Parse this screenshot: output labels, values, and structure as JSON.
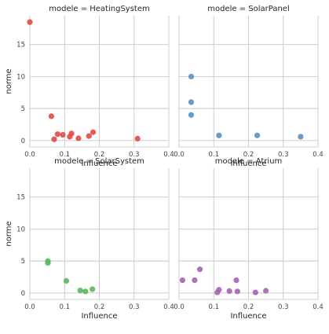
{
  "chart_data": {
    "type": "scatter",
    "facet_variable": "modele",
    "xlabel": "Influence",
    "ylabel": "norme",
    "xlim": [
      0,
      0.4
    ],
    "ylim": [
      -1,
      19.5
    ],
    "x_ticks": [
      0.0,
      0.1,
      0.2,
      0.3,
      0.4
    ],
    "x_tick_labels": [
      "0.0",
      "0.1",
      "0.2",
      "0.3",
      "0.4"
    ],
    "y_ticks": [
      0,
      5,
      10,
      15
    ],
    "y_tick_labels": [
      "0",
      "5",
      "10",
      "15"
    ],
    "grid": true,
    "panels": [
      {
        "title": "modele = HeatingSystem",
        "color": "#e24a44",
        "points": [
          {
            "x": 0.0,
            "y": 18.5
          },
          {
            "x": 0.062,
            "y": 3.8
          },
          {
            "x": 0.07,
            "y": 0.2
          },
          {
            "x": 0.08,
            "y": 1.0
          },
          {
            "x": 0.095,
            "y": 0.9
          },
          {
            "x": 0.115,
            "y": 0.6
          },
          {
            "x": 0.12,
            "y": 1.1
          },
          {
            "x": 0.14,
            "y": 0.35
          },
          {
            "x": 0.17,
            "y": 0.7
          },
          {
            "x": 0.182,
            "y": 1.3
          },
          {
            "x": 0.31,
            "y": 0.3
          }
        ]
      },
      {
        "title": "modele = SolarPanel",
        "color": "#5a8fc0",
        "points": [
          {
            "x": 0.035,
            "y": 10.0
          },
          {
            "x": 0.035,
            "y": 6.0
          },
          {
            "x": 0.035,
            "y": 4.0
          },
          {
            "x": 0.115,
            "y": 0.8
          },
          {
            "x": 0.225,
            "y": 0.8
          },
          {
            "x": 0.35,
            "y": 0.6
          }
        ]
      },
      {
        "title": "modele = SolarSystem",
        "color": "#5cb85a",
        "points": [
          {
            "x": 0.052,
            "y": 5.0
          },
          {
            "x": 0.052,
            "y": 4.7
          },
          {
            "x": 0.105,
            "y": 1.9
          },
          {
            "x": 0.145,
            "y": 0.4
          },
          {
            "x": 0.16,
            "y": 0.25
          },
          {
            "x": 0.18,
            "y": 0.6
          }
        ]
      },
      {
        "title": "modele = Atrium",
        "color": "#a563b5",
        "points": [
          {
            "x": 0.01,
            "y": 2.0
          },
          {
            "x": 0.045,
            "y": 2.0
          },
          {
            "x": 0.06,
            "y": 3.7
          },
          {
            "x": 0.11,
            "y": 0.1
          },
          {
            "x": 0.115,
            "y": 0.5
          },
          {
            "x": 0.145,
            "y": 0.3
          },
          {
            "x": 0.165,
            "y": 2.0
          },
          {
            "x": 0.168,
            "y": 0.25
          },
          {
            "x": 0.22,
            "y": 0.1
          },
          {
            "x": 0.25,
            "y": 0.35
          }
        ]
      }
    ]
  }
}
